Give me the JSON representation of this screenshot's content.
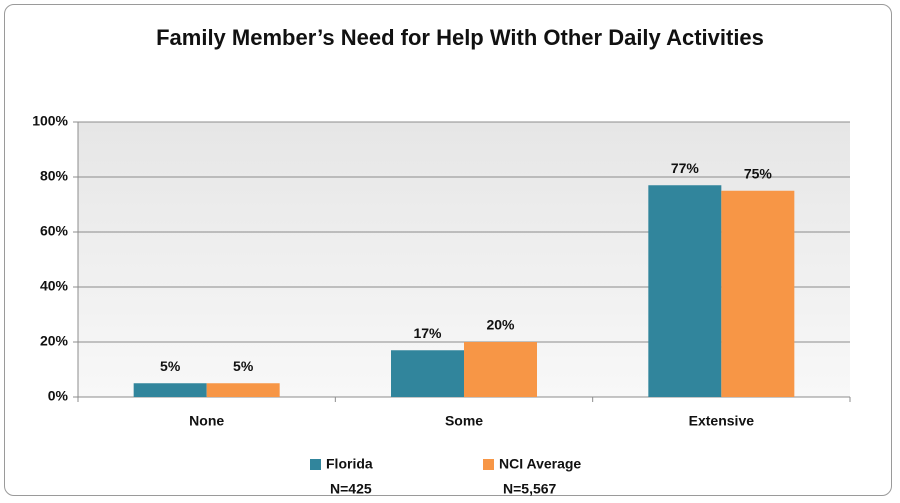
{
  "chart_data": {
    "type": "bar",
    "title": "Family Member’s Need for Help With Other Daily Activities",
    "categories": [
      "None",
      "Some",
      "Extensive"
    ],
    "series": [
      {
        "name": "Florida",
        "note": "N=425",
        "color": "#31859c",
        "values": [
          5,
          17,
          77
        ],
        "value_labels": [
          "5%",
          "17%",
          "77%"
        ]
      },
      {
        "name": "NCI Average",
        "note": "N=5,567",
        "color": "#f79646",
        "values": [
          5,
          20,
          75
        ],
        "value_labels": [
          "5%",
          "20%",
          "75%"
        ]
      }
    ],
    "ylim": [
      0,
      100
    ],
    "yticks": [
      {
        "value": 0,
        "label": "0%"
      },
      {
        "value": 20,
        "label": "20%"
      },
      {
        "value": 40,
        "label": "40%"
      },
      {
        "value": 60,
        "label": "60%"
      },
      {
        "value": 80,
        "label": "80%"
      },
      {
        "value": 100,
        "label": "100%"
      }
    ],
    "grid": true
  }
}
